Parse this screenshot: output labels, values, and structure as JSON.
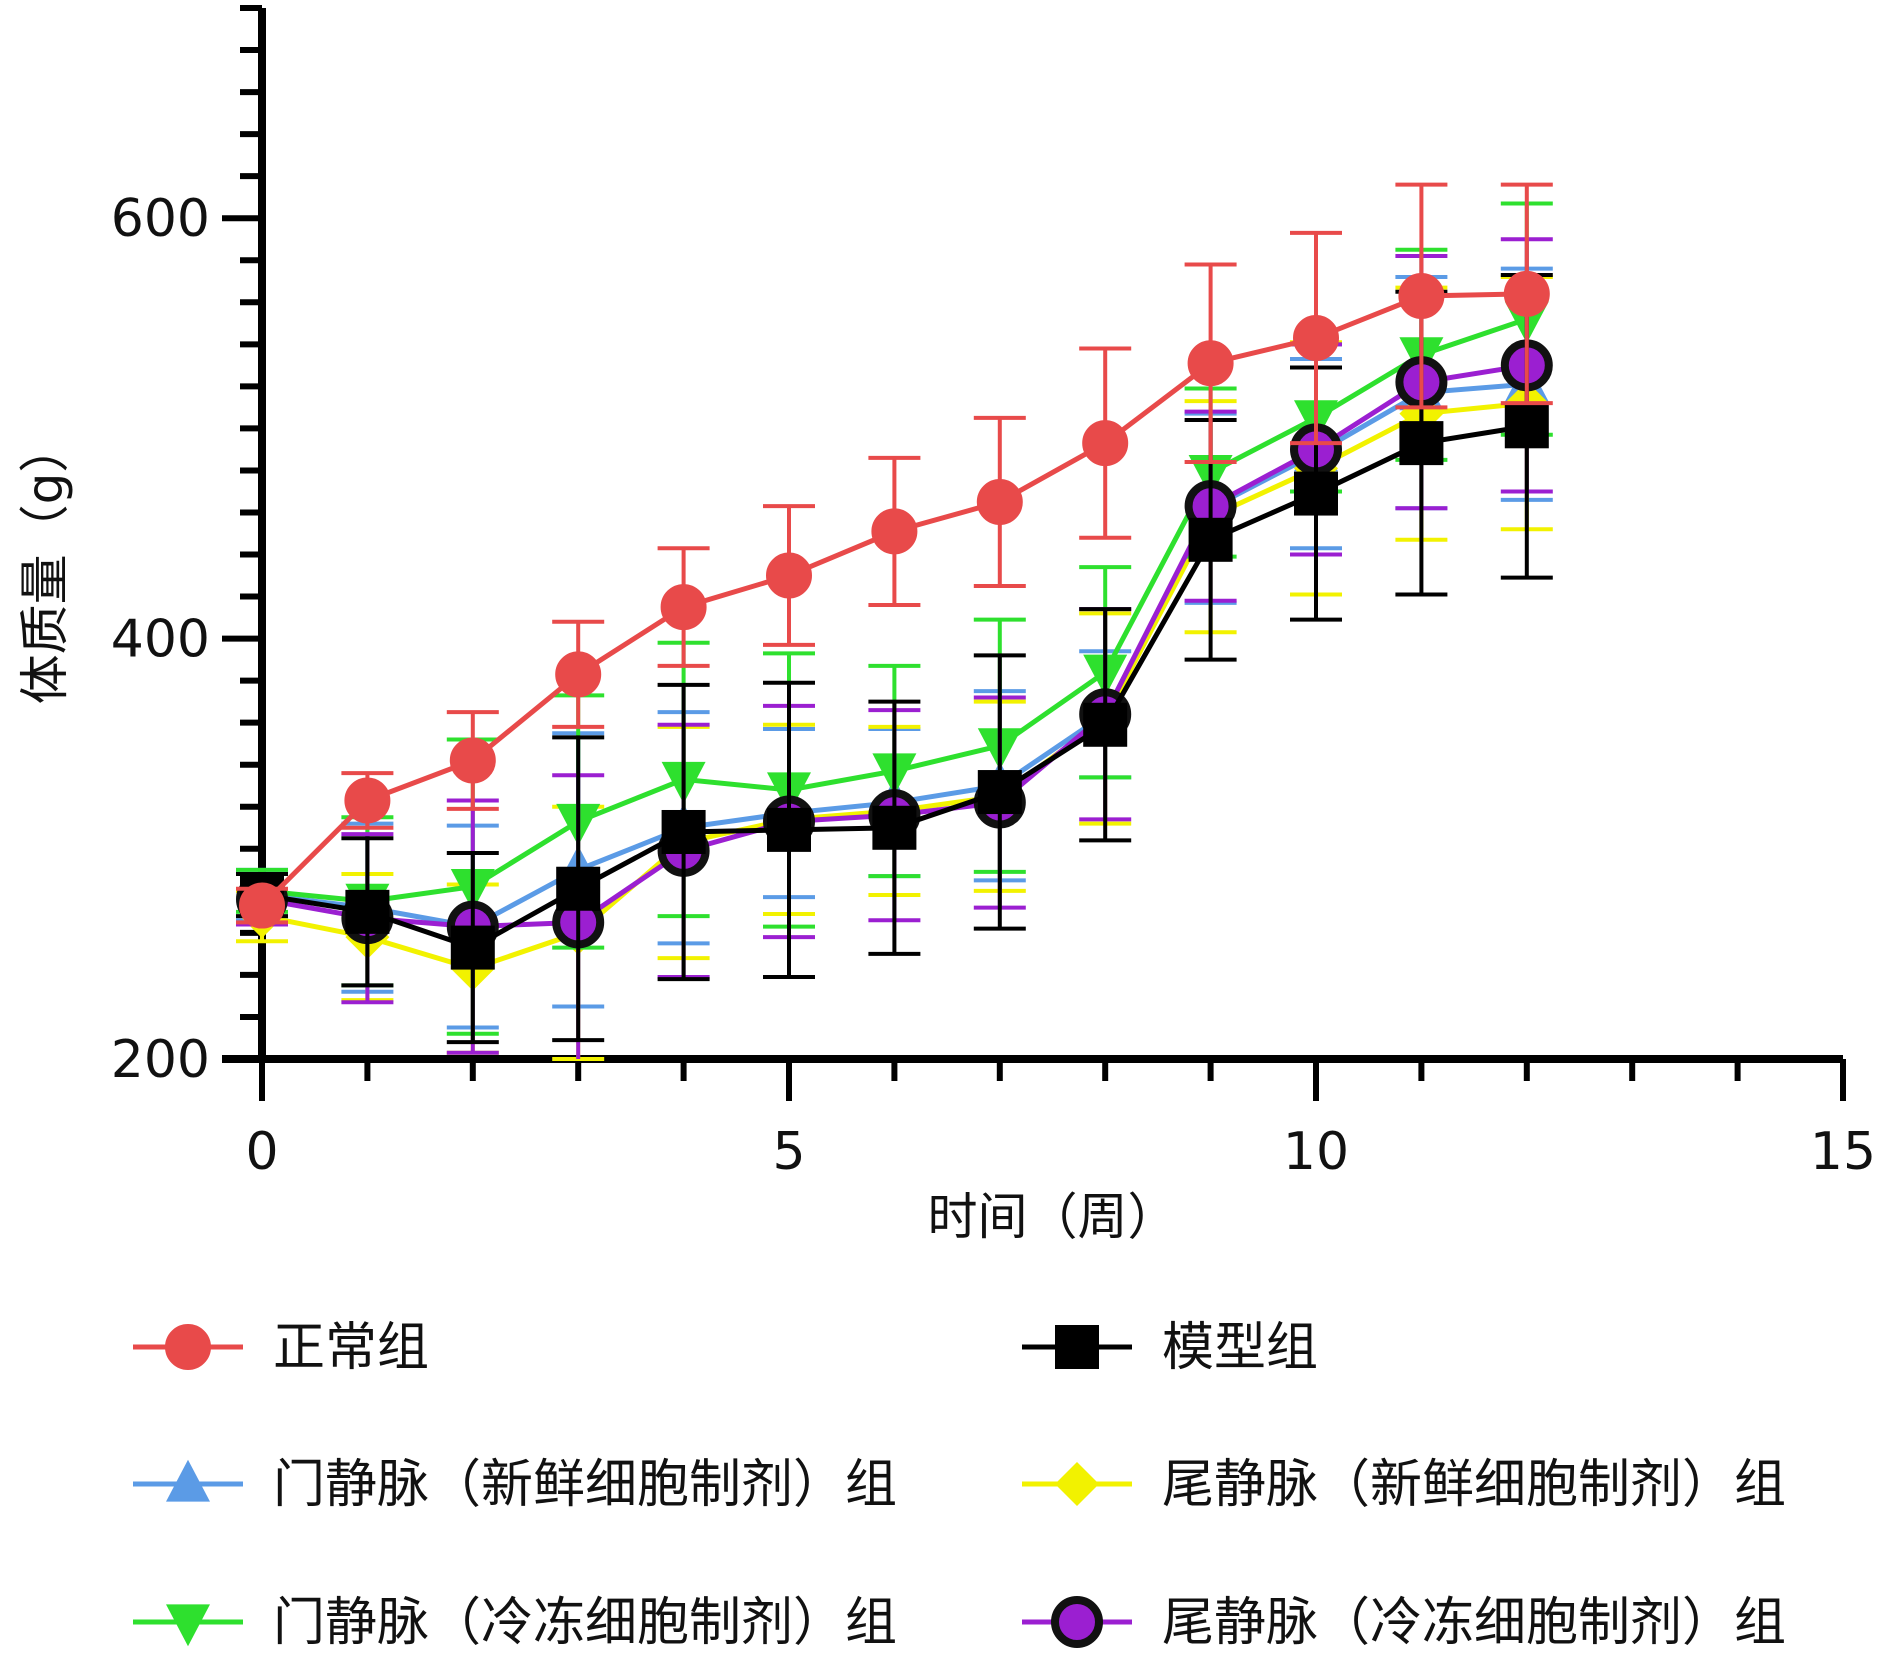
{
  "chart_data": {
    "type": "line",
    "title": "",
    "xlabel": "时间（周）",
    "ylabel": "体质量（g）",
    "xlim": [
      0,
      15
    ],
    "ylim": [
      200,
      700
    ],
    "xticks": [
      0,
      5,
      10,
      15
    ],
    "yticks": [
      200,
      400,
      600
    ],
    "x": [
      0,
      1,
      2,
      3,
      4,
      5,
      6,
      7,
      8,
      9,
      10,
      11,
      12
    ],
    "series": [
      {
        "name": "门静脉（新鲜细胞制剂）组",
        "color": "#5b9be6",
        "marker": "triangle-up",
        "values": [
          278,
          272,
          263,
          290,
          310,
          317,
          322,
          330,
          364,
          462,
          488,
          517,
          521
        ],
        "errors": [
          12,
          40,
          48,
          65,
          55,
          40,
          35,
          45,
          30,
          45,
          45,
          55,
          55
        ]
      },
      {
        "name": "尾静脉（新鲜细胞制剂）组",
        "color": "#f2f200",
        "marker": "diamond",
        "values": [
          268,
          258,
          243,
          260,
          303,
          314,
          318,
          325,
          362,
          458,
          481,
          507,
          512
        ],
        "errors": [
          12,
          30,
          40,
          60,
          55,
          45,
          40,
          45,
          50,
          55,
          60,
          60,
          60
        ]
      },
      {
        "name": "门静脉（冷冻细胞制剂）组",
        "color": "#2ee02e",
        "marker": "triangle-down",
        "values": [
          280,
          275,
          282,
          313,
          333,
          328,
          337,
          349,
          384,
          479,
          505,
          535,
          552
        ],
        "errors": [
          10,
          40,
          70,
          60,
          65,
          65,
          50,
          60,
          50,
          40,
          35,
          50,
          55
        ]
      },
      {
        "name": "尾静脉（冷冻细胞制剂）组",
        "color": "#9b1fd1",
        "marker": "circle-dark",
        "values": [
          276,
          267,
          263,
          265,
          299,
          313,
          316,
          322,
          364,
          463,
          490,
          522,
          530
        ],
        "errors": [
          12,
          40,
          60,
          70,
          60,
          55,
          50,
          50,
          50,
          45,
          50,
          60,
          60
        ]
      },
      {
        "name": "模型组",
        "color": "#000000",
        "marker": "square",
        "values": [
          278,
          270,
          253,
          281,
          308,
          309,
          310,
          327,
          359,
          447,
          469,
          493,
          501
        ],
        "errors": [
          10,
          35,
          45,
          72,
          70,
          70,
          60,
          65,
          55,
          57,
          60,
          72,
          72
        ]
      },
      {
        "name": "正常组",
        "color": "#e84a4a",
        "marker": "circle",
        "values": [
          273,
          323,
          342,
          383,
          415,
          430,
          451,
          465,
          493,
          531,
          543,
          563,
          564
        ],
        "errors": [
          8,
          13,
          23,
          25,
          28,
          33,
          35,
          40,
          45,
          47,
          50,
          53,
          52
        ]
      }
    ],
    "legend": {
      "placement": "bottom",
      "entries": [
        {
          "label": "正常组",
          "color": "#e84a4a",
          "marker": "circle"
        },
        {
          "label": "模型组",
          "color": "#000000",
          "marker": "square"
        },
        {
          "label": "门静脉（新鲜细胞制剂）组",
          "color": "#5b9be6",
          "marker": "triangle-up"
        },
        {
          "label": "尾静脉（新鲜细胞制剂）组",
          "color": "#f2f200",
          "marker": "diamond"
        },
        {
          "label": "门静脉（冷冻细胞制剂）组",
          "color": "#2ee02e",
          "marker": "triangle-down"
        },
        {
          "label": "尾静脉（冷冻细胞制剂）组",
          "color": "#9b1fd1",
          "marker": "circle-dark"
        }
      ]
    }
  }
}
